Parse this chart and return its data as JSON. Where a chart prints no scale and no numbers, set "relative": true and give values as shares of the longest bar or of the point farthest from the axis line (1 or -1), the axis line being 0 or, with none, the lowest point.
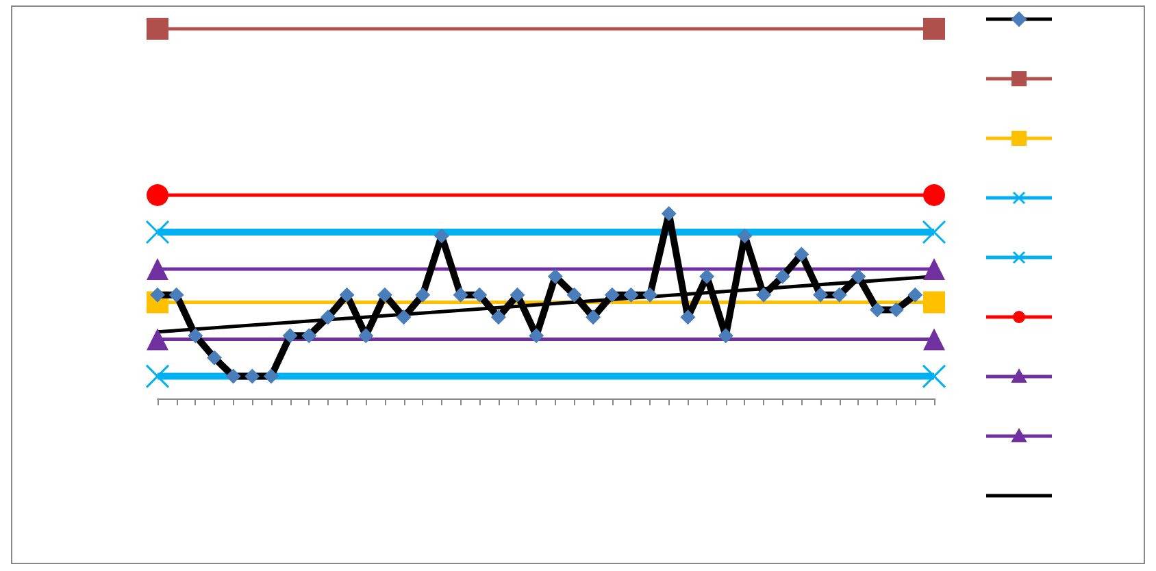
{
  "chart_data": {
    "type": "line",
    "relative": true,
    "grid": false,
    "tick_labels": false,
    "categories": [
      null,
      null,
      null,
      null,
      null,
      null,
      null,
      null,
      null,
      null,
      null,
      null,
      null,
      null,
      null,
      null,
      null,
      null,
      null,
      null,
      null,
      null,
      null,
      null,
      null,
      null,
      null,
      null,
      null,
      null,
      null,
      null,
      null,
      null,
      null,
      null,
      null,
      null,
      null,
      null,
      null,
      null
    ],
    "series": [
      {
        "color": "#000000",
        "marker": "diamond",
        "values": [
          0.28,
          0.28,
          0.17,
          0.11,
          0.06,
          0.06,
          0.06,
          0.17,
          0.17,
          0.22,
          0.28,
          0.17,
          0.28,
          0.22,
          0.28,
          0.44,
          0.28,
          0.28,
          0.22,
          0.28,
          0.17,
          0.33,
          0.28,
          0.22,
          0.28,
          0.28,
          0.28,
          0.5,
          0.22,
          0.33,
          0.17,
          0.44,
          0.28,
          0.33,
          0.39,
          0.28,
          0.28,
          0.33,
          0.24,
          0.24,
          0.28,
          null
        ]
      },
      {
        "color": "#b0504d",
        "marker": "square",
        "values": [
          1,
          null,
          null,
          null,
          null,
          null,
          null,
          null,
          null,
          null,
          null,
          null,
          null,
          null,
          null,
          null,
          null,
          null,
          null,
          null,
          null,
          null,
          null,
          null,
          null,
          null,
          null,
          null,
          null,
          null,
          null,
          null,
          null,
          null,
          null,
          null,
          null,
          null,
          null,
          null,
          null,
          1
        ]
      },
      {
        "color": "#ffc000",
        "marker": "square",
        "values": [
          0.26,
          null,
          null,
          null,
          null,
          null,
          null,
          null,
          null,
          null,
          null,
          null,
          null,
          null,
          null,
          null,
          null,
          null,
          null,
          null,
          null,
          null,
          null,
          null,
          null,
          null,
          null,
          null,
          null,
          null,
          null,
          null,
          null,
          null,
          null,
          null,
          null,
          null,
          null,
          null,
          null,
          0.26
        ]
      },
      {
        "color": "#00b0f0",
        "marker": "cross",
        "values": [
          0.06,
          null,
          null,
          null,
          null,
          null,
          null,
          null,
          null,
          null,
          null,
          null,
          null,
          null,
          null,
          null,
          null,
          null,
          null,
          null,
          null,
          null,
          null,
          null,
          null,
          null,
          null,
          null,
          null,
          null,
          null,
          null,
          null,
          null,
          null,
          null,
          null,
          null,
          null,
          null,
          null,
          0.06
        ]
      },
      {
        "color": "#00b0f0",
        "marker": "cross",
        "values": [
          0.45,
          null,
          null,
          null,
          null,
          null,
          null,
          null,
          null,
          null,
          null,
          null,
          null,
          null,
          null,
          null,
          null,
          null,
          null,
          null,
          null,
          null,
          null,
          null,
          null,
          null,
          null,
          null,
          null,
          null,
          null,
          null,
          null,
          null,
          null,
          null,
          null,
          null,
          null,
          null,
          null,
          0.45
        ]
      },
      {
        "color": "#ff0000",
        "marker": "circle",
        "values": [
          0.55,
          null,
          null,
          null,
          null,
          null,
          null,
          null,
          null,
          null,
          null,
          null,
          null,
          null,
          null,
          null,
          null,
          null,
          null,
          null,
          null,
          null,
          null,
          null,
          null,
          null,
          null,
          null,
          null,
          null,
          null,
          null,
          null,
          null,
          null,
          null,
          null,
          null,
          null,
          null,
          null,
          0.55
        ]
      },
      {
        "color": "#7030a0",
        "marker": "triangle",
        "values": [
          0.16,
          null,
          null,
          null,
          null,
          null,
          null,
          null,
          null,
          null,
          null,
          null,
          null,
          null,
          null,
          null,
          null,
          null,
          null,
          null,
          null,
          null,
          null,
          null,
          null,
          null,
          null,
          null,
          null,
          null,
          null,
          null,
          null,
          null,
          null,
          null,
          null,
          null,
          null,
          null,
          null,
          0.16
        ]
      },
      {
        "color": "#7030a0",
        "marker": "triangle",
        "values": [
          0.35,
          null,
          null,
          null,
          null,
          null,
          null,
          null,
          null,
          null,
          null,
          null,
          null,
          null,
          null,
          null,
          null,
          null,
          null,
          null,
          null,
          null,
          null,
          null,
          null,
          null,
          null,
          null,
          null,
          null,
          null,
          null,
          null,
          null,
          null,
          null,
          null,
          null,
          null,
          null,
          null,
          0.35
        ]
      },
      {
        "color": "#000000",
        "marker": "none",
        "values": [
          0.18,
          null,
          null,
          null,
          null,
          null,
          null,
          null,
          null,
          null,
          null,
          null,
          null,
          null,
          null,
          null,
          null,
          null,
          null,
          null,
          null,
          null,
          null,
          null,
          null,
          null,
          null,
          null,
          null,
          null,
          null,
          null,
          null,
          null,
          null,
          null,
          null,
          null,
          null,
          null,
          null,
          0.33
        ]
      }
    ]
  }
}
